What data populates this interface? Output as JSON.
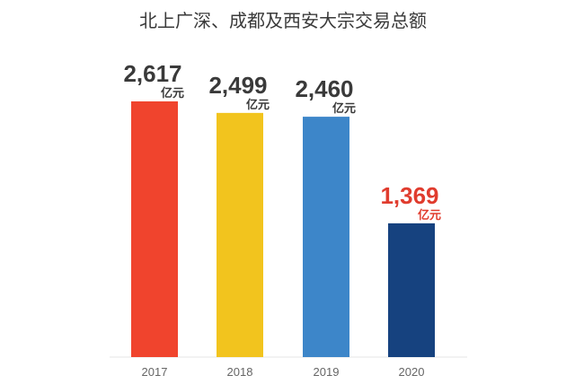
{
  "chart_data": {
    "type": "bar",
    "title": "北上广深、成都及西安大宗交易总额",
    "categories": [
      "2017",
      "2018",
      "2019",
      "2020"
    ],
    "values": [
      2617,
      2499,
      2460,
      1369
    ],
    "value_labels": [
      "2,617",
      "2,499",
      "2,460",
      "1,369"
    ],
    "unit": "亿元",
    "ylim": [
      0,
      2617
    ],
    "grid": false,
    "legend": "none",
    "bar_colors": [
      "#f0442d",
      "#f2c41e",
      "#3d86c9",
      "#16427f"
    ],
    "label_colors": [
      "#3a3a3a",
      "#3a3a3a",
      "#3a3a3a",
      "#e03c2e"
    ]
  }
}
